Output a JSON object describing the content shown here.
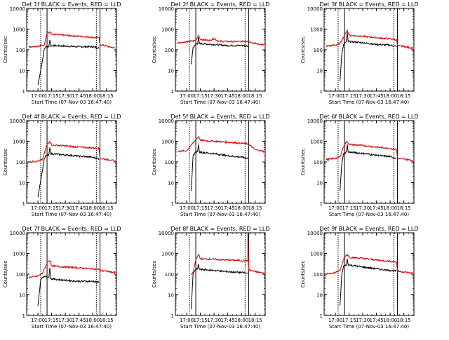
{
  "colors": {
    "events": "#000000",
    "lld": "#e00000",
    "axis": "#000000",
    "background": "#ffffff"
  },
  "shared": {
    "ylabel": "Counts/sec",
    "xlabel": "Start Time (07-Nov-03 16:47:40)",
    "x_ticks": [
      "17:00",
      "17:15",
      "17:30",
      "17:45",
      "18:00",
      "18:15"
    ],
    "y_ticks": [
      "1",
      "10",
      "100",
      "1000",
      "10000"
    ],
    "dashed_lines_at": [
      "17:03",
      "18:04"
    ],
    "solid_lines_at": [
      "17:10",
      "18:08"
    ]
  },
  "chart_data": [
    {
      "type": "line",
      "title": "Det 1f BLACK = Events, RED = LLD",
      "x_range": [
        "16:47:40",
        "18:26"
      ],
      "y_scale": "log",
      "ylim": [
        1,
        10000
      ],
      "grid": false,
      "series": [
        {
          "name": "Events",
          "x": [
            "17:00",
            "17:05",
            "17:07",
            "17:09",
            "17:12",
            "17:13",
            "17:14",
            "17:16",
            "17:30",
            "17:45",
            "18:00",
            "18:07"
          ],
          "y": [
            2,
            30,
            110,
            140,
            140,
            300,
            150,
            160,
            150,
            140,
            140,
            120
          ]
        },
        {
          "name": "LLD",
          "x": [
            "16:50",
            "17:00",
            "17:05",
            "17:07",
            "17:10",
            "17:13",
            "17:15",
            "17:30",
            "17:45",
            "18:00",
            "18:07",
            "18:08",
            "18:15",
            "18:25"
          ],
          "y": [
            140,
            150,
            160,
            170,
            650,
            750,
            560,
            500,
            450,
            400,
            380,
            180,
            150,
            120
          ]
        }
      ]
    },
    {
      "type": "line",
      "title": "Det 2f BLACK = Events, RED = LLD",
      "x_range": [
        "16:47:40",
        "18:26"
      ],
      "y_scale": "log",
      "ylim": [
        1,
        10000
      ],
      "grid": false,
      "series": [
        {
          "name": "Events",
          "x": [
            "17:05",
            "17:07",
            "17:09",
            "17:12",
            "17:13",
            "17:14",
            "17:30",
            "17:45",
            "18:00",
            "18:07"
          ],
          "y": [
            20,
            130,
            170,
            190,
            400,
            200,
            180,
            160,
            160,
            150
          ]
        },
        {
          "name": "LLD",
          "x": [
            "16:50",
            "17:00",
            "17:10",
            "17:13",
            "17:15",
            "17:25",
            "17:30",
            "17:35",
            "17:45",
            "18:00",
            "18:07",
            "18:15",
            "18:25"
          ],
          "y": [
            220,
            240,
            280,
            500,
            320,
            280,
            350,
            260,
            250,
            250,
            260,
            200,
            170
          ]
        }
      ]
    },
    {
      "type": "line",
      "title": "Det 3f BLACK = Events, RED = LLD",
      "x_range": [
        "16:47:40",
        "18:26"
      ],
      "y_scale": "log",
      "ylim": [
        1,
        10000
      ],
      "grid": false,
      "series": [
        {
          "name": "Events",
          "x": [
            "17:05",
            "17:07",
            "17:09",
            "17:12",
            "17:13",
            "17:14",
            "17:30",
            "17:45",
            "18:00",
            "18:07"
          ],
          "y": [
            3,
            60,
            180,
            250,
            700,
            250,
            220,
            180,
            170,
            140
          ]
        },
        {
          "name": "LLD",
          "x": [
            "16:50",
            "17:00",
            "17:05",
            "17:10",
            "17:13",
            "17:15",
            "17:30",
            "17:45",
            "18:00",
            "18:07",
            "18:08",
            "18:25"
          ],
          "y": [
            150,
            170,
            200,
            500,
            900,
            500,
            450,
            380,
            340,
            300,
            160,
            120
          ]
        }
      ]
    },
    {
      "type": "line",
      "title": "Det 4f BLACK = Events, RED = LLD",
      "x_range": [
        "16:47:40",
        "18:26"
      ],
      "y_scale": "log",
      "ylim": [
        1,
        10000
      ],
      "grid": false,
      "series": [
        {
          "name": "Events",
          "x": [
            "17:00",
            "17:05",
            "17:07",
            "17:09",
            "17:12",
            "17:13",
            "17:14",
            "17:30",
            "17:45",
            "18:00",
            "18:07"
          ],
          "y": [
            2,
            40,
            150,
            200,
            220,
            500,
            250,
            220,
            190,
            170,
            140
          ]
        },
        {
          "name": "LLD",
          "x": [
            "16:50",
            "17:00",
            "17:05",
            "17:10",
            "17:13",
            "17:15",
            "17:30",
            "17:45",
            "18:00",
            "18:07",
            "18:08",
            "18:25"
          ],
          "y": [
            100,
            110,
            130,
            700,
            1000,
            650,
            600,
            520,
            480,
            450,
            150,
            110
          ]
        }
      ]
    },
    {
      "type": "line",
      "title": "Det 5f BLACK = Events, RED = LLD",
      "x_range": [
        "16:47:40",
        "18:26"
      ],
      "y_scale": "log",
      "ylim": [
        1,
        10000
      ],
      "grid": false,
      "series": [
        {
          "name": "Events",
          "x": [
            "17:05",
            "17:07",
            "17:09",
            "17:12",
            "17:13",
            "17:14",
            "17:30",
            "17:45",
            "18:00",
            "18:07"
          ],
          "y": [
            4,
            200,
            280,
            320,
            700,
            300,
            250,
            200,
            170,
            150
          ]
        },
        {
          "name": "LLD",
          "x": [
            "16:50",
            "17:00",
            "17:10",
            "17:13",
            "17:15",
            "17:30",
            "17:45",
            "18:00",
            "18:07",
            "18:15",
            "18:25"
          ],
          "y": [
            320,
            350,
            1200,
            1700,
            1100,
            1000,
            900,
            800,
            750,
            400,
            320
          ]
        }
      ]
    },
    {
      "type": "line",
      "title": "Det 6f BLACK = Events, RED = LLD",
      "x_range": [
        "16:47:40",
        "18:26"
      ],
      "y_scale": "log",
      "ylim": [
        1,
        10000
      ],
      "grid": false,
      "series": [
        {
          "name": "Events",
          "x": [
            "17:05",
            "17:07",
            "17:09",
            "17:12",
            "17:13",
            "17:14",
            "17:30",
            "17:45",
            "18:00",
            "18:07"
          ],
          "y": [
            4,
            80,
            250,
            300,
            700,
            300,
            260,
            210,
            180,
            150
          ]
        },
        {
          "name": "LLD",
          "x": [
            "16:50",
            "17:00",
            "17:05",
            "17:10",
            "17:13",
            "17:15",
            "17:30",
            "17:45",
            "18:00",
            "18:07",
            "18:08",
            "18:25"
          ],
          "y": [
            130,
            150,
            180,
            750,
            950,
            700,
            620,
            520,
            450,
            400,
            150,
            120
          ]
        }
      ]
    },
    {
      "type": "line",
      "title": "Det 7f BLACK = Events, RED = LLD",
      "x_range": [
        "16:47:40",
        "18:26"
      ],
      "y_scale": "log",
      "ylim": [
        1,
        10000
      ],
      "grid": false,
      "series": [
        {
          "name": "Events",
          "x": [
            "17:00",
            "17:03",
            "17:05",
            "17:07",
            "17:12",
            "17:13",
            "17:14",
            "17:30",
            "17:45",
            "18:00",
            "18:07"
          ],
          "y": [
            3,
            50,
            70,
            80,
            70,
            200,
            60,
            50,
            45,
            45,
            40
          ]
        },
        {
          "name": "LLD",
          "x": [
            "16:50",
            "17:00",
            "17:05",
            "17:10",
            "17:13",
            "17:15",
            "17:30",
            "17:45",
            "18:00",
            "18:07",
            "18:08",
            "18:25"
          ],
          "y": [
            70,
            80,
            110,
            350,
            450,
            250,
            220,
            200,
            180,
            170,
            150,
            120
          ]
        }
      ]
    },
    {
      "type": "line",
      "title": "Det 8f BLACK = Events, RED = LLD",
      "x_range": [
        "16:47:40",
        "18:26"
      ],
      "y_scale": "log",
      "ylim": [
        1,
        10000
      ],
      "grid": false,
      "series": [
        {
          "name": "Events",
          "x": [
            "17:05",
            "17:07",
            "17:09",
            "17:12",
            "17:13",
            "17:14",
            "17:30",
            "17:45",
            "18:00",
            "18:07"
          ],
          "y": [
            2,
            100,
            150,
            180,
            300,
            170,
            150,
            130,
            120,
            110
          ]
        },
        {
          "name": "LLD",
          "x": [
            "17:05",
            "17:07",
            "17:10",
            "17:13",
            "17:15",
            "17:30",
            "17:45",
            "18:00",
            "18:07",
            "18:07",
            "18:08",
            "18:15",
            "18:25"
          ],
          "y": [
            100,
            120,
            500,
            900,
            550,
            520,
            480,
            450,
            450,
            10000,
            160,
            130,
            110
          ]
        }
      ]
    },
    {
      "type": "line",
      "title": "Det 9f BLACK = Events, RED = LLD",
      "x_range": [
        "16:47:40",
        "18:26"
      ],
      "y_scale": "log",
      "ylim": [
        1,
        10000
      ],
      "grid": false,
      "series": [
        {
          "name": "Events",
          "x": [
            "17:05",
            "17:07",
            "17:09",
            "17:12",
            "17:13",
            "17:14",
            "17:30",
            "17:45",
            "18:00",
            "18:07"
          ],
          "y": [
            3,
            90,
            250,
            280,
            550,
            280,
            220,
            180,
            150,
            140
          ]
        },
        {
          "name": "LLD",
          "x": [
            "16:50",
            "17:00",
            "17:05",
            "17:10",
            "17:13",
            "17:15",
            "17:30",
            "17:45",
            "18:00",
            "18:07",
            "18:08",
            "18:25"
          ],
          "y": [
            100,
            120,
            150,
            700,
            900,
            650,
            580,
            480,
            420,
            380,
            140,
            110
          ]
        }
      ]
    }
  ]
}
